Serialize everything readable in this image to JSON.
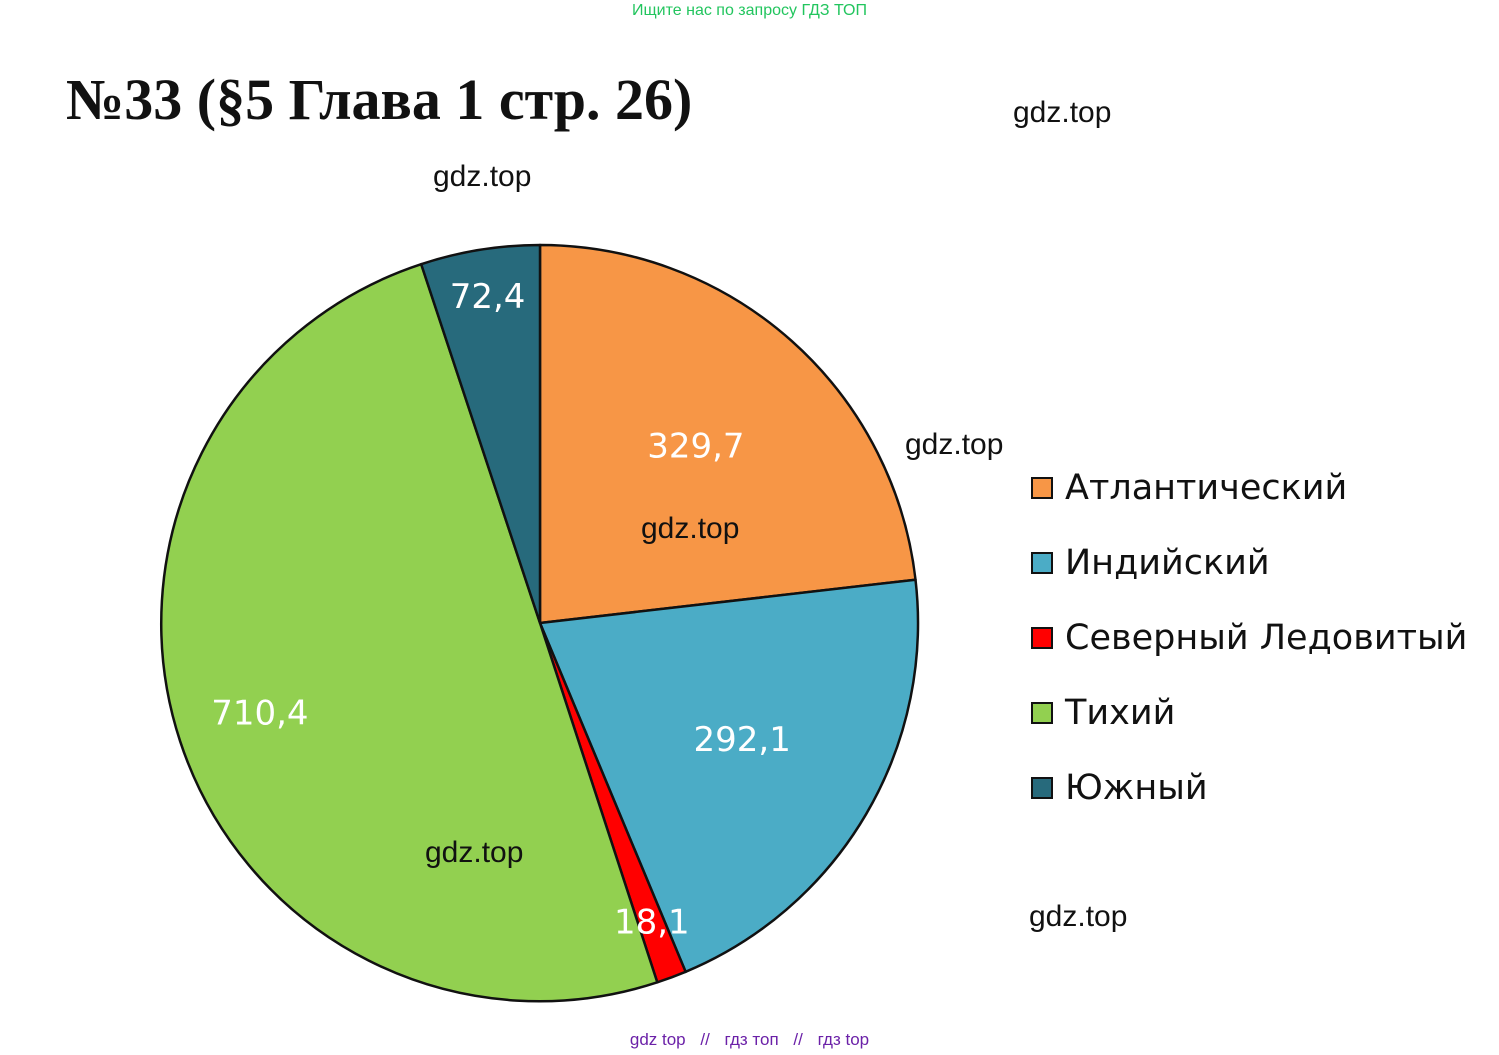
{
  "banner": "Ищите нас по запросу ГДЗ ТОП",
  "title": "№33 (§5 Глава 1 стр. 26)",
  "watermarks": [
    "gdz.top",
    "gdz.top",
    "gdz.top",
    "gdz.top",
    "gdz.top",
    "gdz.top"
  ],
  "footer": {
    "links": [
      "gdz top",
      "гдз топ",
      "гдз top"
    ],
    "separator": "//"
  },
  "chart_data": {
    "type": "pie",
    "title": "",
    "start": "12 o'clock",
    "direction": "clockwise",
    "legend_position": "right",
    "categories": [
      "Атлантический",
      "Индийский",
      "Северный Ледовитый",
      "Тихий",
      "Южный"
    ],
    "values": [
      329.7,
      292.1,
      18.1,
      710.4,
      72.4
    ],
    "data_labels": [
      "329,7",
      "292,1",
      "18,1",
      "710,4",
      "72,4"
    ],
    "colors": [
      "#f79646",
      "#4bacc6",
      "#ff0000",
      "#92d050",
      "#276a7c"
    ]
  }
}
